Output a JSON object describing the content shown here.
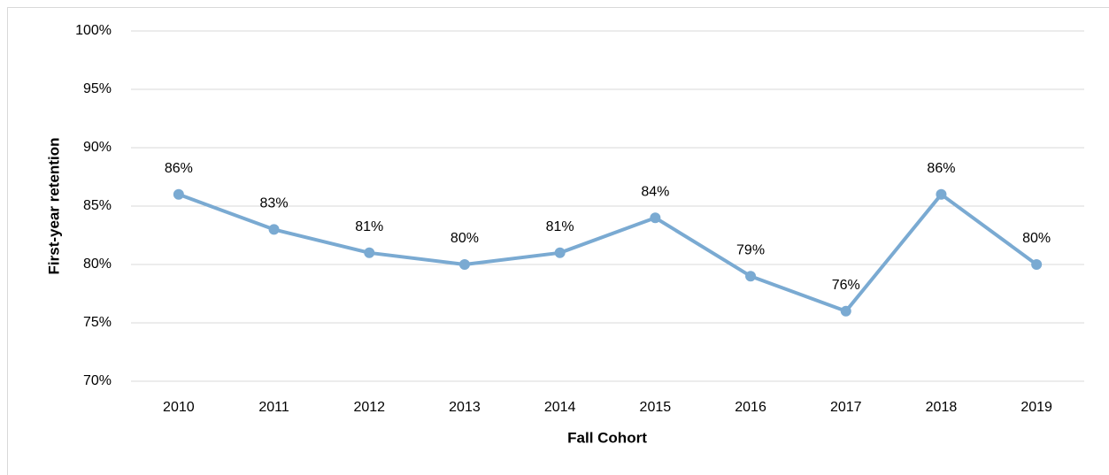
{
  "chart_data": {
    "type": "line",
    "xlabel": "Fall Cohort",
    "ylabel": "First-year retention",
    "categories": [
      "2010",
      "2011",
      "2012",
      "2013",
      "2014",
      "2015",
      "2016",
      "2017",
      "2018",
      "2019"
    ],
    "series": [
      {
        "name": "First-year retention",
        "color": "#7aaad2",
        "values": [
          86,
          83,
          81,
          80,
          81,
          84,
          79,
          76,
          86,
          80
        ],
        "value_labels": [
          "86%",
          "83%",
          "81%",
          "80%",
          "81%",
          "84%",
          "79%",
          "76%",
          "86%",
          "80%"
        ]
      }
    ],
    "ylim": [
      70,
      100
    ],
    "yticks": [
      {
        "value": 70,
        "label": "70%"
      },
      {
        "value": 75,
        "label": "75%"
      },
      {
        "value": 80,
        "label": "80%"
      },
      {
        "value": 85,
        "label": "85%"
      },
      {
        "value": 90,
        "label": "90%"
      },
      {
        "value": 95,
        "label": "95%"
      },
      {
        "value": 100,
        "label": "100%"
      }
    ],
    "grid": true
  }
}
